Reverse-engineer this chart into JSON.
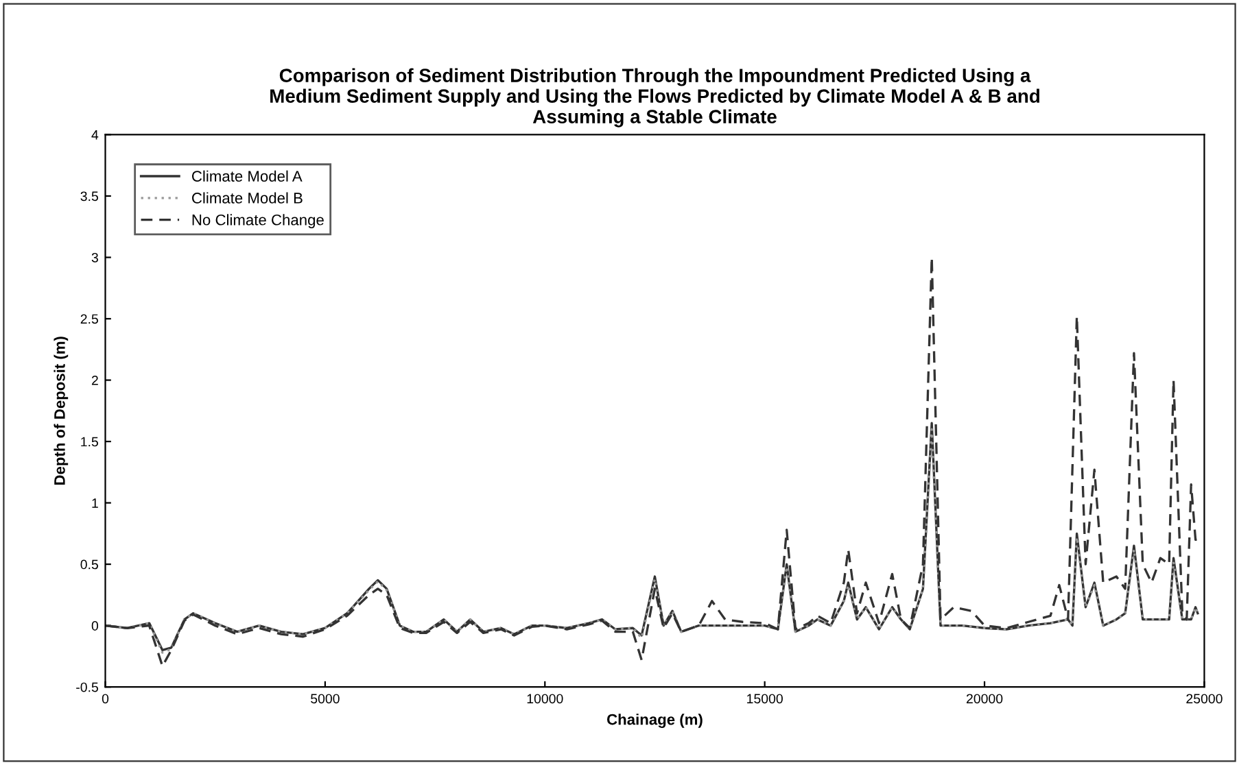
{
  "chart_data": {
    "type": "line",
    "title": "Comparison of Sediment Distribution Through the Impoundment Predicted Using a\nMedium Sediment Supply and Using the Flows Predicted by Climate Model A & B and\nAssuming a Stable Climate",
    "xlabel": "Chainage (m)",
    "ylabel": "Depth of Deposit (m)",
    "xlim": [
      0,
      25000
    ],
    "xticks": [
      0,
      5000,
      10000,
      15000,
      20000,
      25000
    ],
    "ylim": [
      -0.5,
      4
    ],
    "yticks": [
      -0.5,
      0,
      0.5,
      1,
      1.5,
      2,
      2.5,
      3,
      3.5,
      4
    ],
    "grid": false,
    "legend": "top left",
    "marker": "none",
    "series": [
      {
        "name": "Climate Model A",
        "color": "#333333",
        "line_style": "solid",
        "x": [
          0,
          500,
          1000,
          1300,
          1500,
          1800,
          2000,
          2500,
          3000,
          3500,
          4000,
          4500,
          5000,
          5500,
          6000,
          6200,
          6400,
          6700,
          7000,
          7300,
          7700,
          8000,
          8300,
          8600,
          9000,
          9300,
          9700,
          10000,
          10500,
          11000,
          11300,
          11600,
          12000,
          12200,
          12500,
          12700,
          12900,
          13100,
          13500,
          14000,
          14500,
          15000,
          15300,
          15500,
          15700,
          16000,
          16200,
          16500,
          16800,
          16900,
          17100,
          17300,
          17600,
          17900,
          18100,
          18300,
          18600,
          18800,
          19000,
          19500,
          20000,
          20500,
          21000,
          21500,
          21900,
          22000,
          22100,
          22300,
          22500,
          22700,
          23000,
          23200,
          23400,
          23600,
          24000,
          24200,
          24300,
          24500,
          24700,
          24800,
          24850
        ],
        "values": [
          0,
          -0.02,
          0.02,
          -0.2,
          -0.18,
          0.05,
          0.1,
          0.02,
          -0.05,
          0,
          -0.05,
          -0.07,
          -0.02,
          0.1,
          0.3,
          0.37,
          0.3,
          0,
          -0.05,
          -0.05,
          0.05,
          -0.05,
          0.05,
          -0.05,
          -0.02,
          -0.07,
          0,
          0,
          -0.02,
          0.02,
          0.05,
          -0.03,
          -0.02,
          -0.08,
          0.4,
          0,
          0.12,
          -0.05,
          0,
          0,
          0,
          0,
          -0.03,
          0.5,
          -0.05,
          0,
          0.05,
          0,
          0.2,
          0.35,
          0.05,
          0.15,
          -0.03,
          0.15,
          0.05,
          -0.03,
          0.3,
          1.65,
          0,
          0,
          -0.02,
          -0.03,
          0,
          0.02,
          0.05,
          0,
          0.75,
          0.15,
          0.35,
          0,
          0.05,
          0.1,
          0.65,
          0.05,
          0.05,
          0.05,
          0.55,
          0.05,
          0.05,
          0.15,
          0.1
        ]
      },
      {
        "name": "Climate Model B",
        "color": "#999999",
        "line_style": "dotted",
        "x": [
          0,
          500,
          1000,
          1300,
          1500,
          1800,
          2000,
          2500,
          3000,
          3500,
          4000,
          4500,
          5000,
          5500,
          6000,
          6200,
          6400,
          6700,
          7000,
          7300,
          7700,
          8000,
          8300,
          8600,
          9000,
          9300,
          9700,
          10000,
          10500,
          11000,
          11300,
          11600,
          12000,
          12200,
          12500,
          12700,
          12900,
          13100,
          13500,
          14000,
          14500,
          15000,
          15300,
          15500,
          15700,
          16000,
          16200,
          16500,
          16800,
          16900,
          17100,
          17300,
          17600,
          17900,
          18100,
          18300,
          18600,
          18800,
          19000,
          19500,
          20000,
          20500,
          21000,
          21500,
          21900,
          22000,
          22100,
          22300,
          22500,
          22700,
          23000,
          23200,
          23400,
          23600,
          24000,
          24200,
          24300,
          24500,
          24700,
          24800,
          24850
        ],
        "values": [
          0,
          -0.02,
          0.02,
          -0.22,
          -0.19,
          0.05,
          0.1,
          0.02,
          -0.05,
          0,
          -0.05,
          -0.07,
          -0.02,
          0.1,
          0.29,
          0.36,
          0.29,
          0,
          -0.05,
          -0.05,
          0.05,
          -0.05,
          0.05,
          -0.05,
          -0.02,
          -0.07,
          0,
          0,
          -0.02,
          0.02,
          0.05,
          -0.03,
          -0.02,
          -0.1,
          0.38,
          0,
          0.12,
          -0.05,
          0,
          0,
          0,
          0,
          -0.03,
          0.48,
          -0.05,
          0,
          0.05,
          0,
          0.2,
          0.33,
          0.05,
          0.15,
          -0.03,
          0.15,
          0.05,
          -0.03,
          0.3,
          1.6,
          0,
          0,
          -0.02,
          -0.03,
          0,
          0.02,
          0.05,
          0,
          0.72,
          0.15,
          0.33,
          0,
          0.05,
          0.1,
          0.62,
          0.05,
          0.05,
          0.05,
          0.52,
          0.05,
          0.05,
          0.15,
          0.1
        ]
      },
      {
        "name": "No Climate Change",
        "color": "#333333",
        "line_style": "dashed",
        "x": [
          0,
          500,
          1000,
          1300,
          1500,
          1800,
          2000,
          2500,
          3000,
          3500,
          4000,
          4500,
          5000,
          5500,
          6000,
          6200,
          6400,
          6700,
          7000,
          7300,
          7700,
          8000,
          8300,
          8600,
          9000,
          9300,
          9700,
          10000,
          10500,
          11000,
          11300,
          11600,
          12000,
          12200,
          12500,
          12700,
          12900,
          13100,
          13500,
          13800,
          14100,
          14500,
          15000,
          15300,
          15500,
          15700,
          16000,
          16200,
          16500,
          16800,
          16900,
          17100,
          17300,
          17600,
          17900,
          18100,
          18300,
          18600,
          18800,
          19000,
          19300,
          19700,
          20000,
          20500,
          21000,
          21500,
          21700,
          21900,
          22100,
          22300,
          22500,
          22700,
          23000,
          23200,
          23400,
          23600,
          23800,
          24000,
          24200,
          24300,
          24500,
          24600,
          24700,
          24800,
          24850
        ],
        "values": [
          0,
          -0.02,
          0.0,
          -0.33,
          -0.2,
          0.04,
          0.09,
          0.0,
          -0.07,
          -0.02,
          -0.07,
          -0.09,
          -0.03,
          0.08,
          0.25,
          0.3,
          0.25,
          -0.02,
          -0.06,
          -0.06,
          0.03,
          -0.06,
          0.03,
          -0.06,
          -0.03,
          -0.08,
          -0.01,
          0,
          -0.03,
          0.01,
          0.04,
          -0.05,
          -0.05,
          -0.28,
          0.3,
          -0.02,
          0.1,
          -0.05,
          0,
          0.2,
          0.05,
          0.03,
          0.02,
          -0.03,
          0.78,
          -0.03,
          0.02,
          0.08,
          0.02,
          0.35,
          0.62,
          0.1,
          0.35,
          0.02,
          0.42,
          0.05,
          -0.02,
          0.5,
          3.0,
          0.05,
          0.15,
          0.12,
          0,
          -0.02,
          0.03,
          0.08,
          0.33,
          0.05,
          2.52,
          0.5,
          1.27,
          0.35,
          0.4,
          0.3,
          2.22,
          0.5,
          0.35,
          0.55,
          0.5,
          2.0,
          0.1,
          0.05,
          1.15,
          0.7,
          0.7
        ]
      }
    ]
  }
}
